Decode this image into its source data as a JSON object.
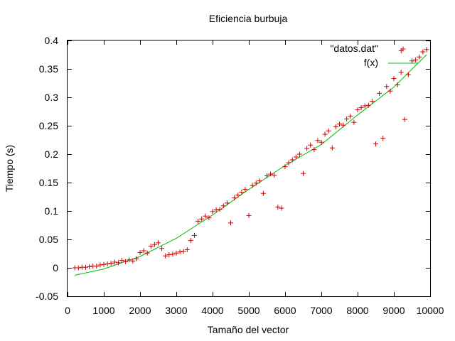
{
  "chart_data": {
    "type": "scatter",
    "title": "Eficiencia burbuja",
    "xlabel": "Tamaño del vector",
    "ylabel": "Tiempo (s)",
    "xlim": [
      0,
      10000
    ],
    "ylim": [
      -0.05,
      0.4
    ],
    "x_ticks": [
      "0",
      "1000",
      "2000",
      "3000",
      "4000",
      "5000",
      "6000",
      "7000",
      "8000",
      "9000",
      "10000"
    ],
    "y_ticks": [
      "-0.05",
      "0",
      "0.05",
      "0.1",
      "0.15",
      "0.2",
      "0.25",
      "0.3",
      "0.35",
      "0.4"
    ],
    "x_tick_values": [
      0,
      1000,
      2000,
      3000,
      4000,
      5000,
      6000,
      7000,
      8000,
      9000,
      10000
    ],
    "y_tick_values": [
      -0.05,
      0,
      0.05,
      0.1,
      0.15,
      0.2,
      0.25,
      0.3,
      0.35,
      0.4
    ],
    "grid": false,
    "legend_position": "top-right",
    "series": [
      {
        "name": "\"datos.dat\"",
        "marker": "+",
        "color": "#cc0000",
        "points": [
          [
            200,
            0.0
          ],
          [
            300,
            0.0
          ],
          [
            400,
            0.001
          ],
          [
            500,
            0.001
          ],
          [
            600,
            0.002
          ],
          [
            700,
            0.003
          ],
          [
            800,
            0.003
          ],
          [
            900,
            0.005
          ],
          [
            1000,
            0.006
          ],
          [
            1100,
            0.007
          ],
          [
            1200,
            0.008
          ],
          [
            1300,
            0.01
          ],
          [
            1400,
            0.009
          ],
          [
            1500,
            0.013
          ],
          [
            1600,
            0.011
          ],
          [
            1700,
            0.014
          ],
          [
            1800,
            0.012
          ],
          [
            1900,
            0.016
          ],
          [
            2000,
            0.027
          ],
          [
            2100,
            0.03
          ],
          [
            2200,
            0.026
          ],
          [
            2300,
            0.038
          ],
          [
            2400,
            0.041
          ],
          [
            2500,
            0.044
          ],
          [
            2600,
            0.034
          ],
          [
            2700,
            0.021
          ],
          [
            2800,
            0.023
          ],
          [
            2900,
            0.024
          ],
          [
            3000,
            0.026
          ],
          [
            3100,
            0.028
          ],
          [
            3200,
            0.029
          ],
          [
            3300,
            0.032
          ],
          [
            3400,
            0.048
          ],
          [
            3500,
            0.057
          ],
          [
            3600,
            0.082
          ],
          [
            3700,
            0.086
          ],
          [
            3800,
            0.091
          ],
          [
            3900,
            0.088
          ],
          [
            4000,
            0.099
          ],
          [
            4100,
            0.102
          ],
          [
            4200,
            0.103
          ],
          [
            4300,
            0.109
          ],
          [
            4400,
            0.114
          ],
          [
            4500,
            0.079
          ],
          [
            4600,
            0.123
          ],
          [
            4700,
            0.128
          ],
          [
            4800,
            0.133
          ],
          [
            4900,
            0.138
          ],
          [
            5000,
            0.092
          ],
          [
            5100,
            0.145
          ],
          [
            5200,
            0.149
          ],
          [
            5300,
            0.153
          ],
          [
            5400,
            0.131
          ],
          [
            5500,
            0.162
          ],
          [
            5600,
            0.165
          ],
          [
            5700,
            0.163
          ],
          [
            5800,
            0.107
          ],
          [
            5900,
            0.105
          ],
          [
            6000,
            0.178
          ],
          [
            6100,
            0.185
          ],
          [
            6200,
            0.19
          ],
          [
            6300,
            0.195
          ],
          [
            6400,
            0.2
          ],
          [
            6500,
            0.166
          ],
          [
            6600,
            0.21
          ],
          [
            6700,
            0.216
          ],
          [
            6800,
            0.208
          ],
          [
            6900,
            0.224
          ],
          [
            7000,
            0.221
          ],
          [
            7100,
            0.235
          ],
          [
            7200,
            0.241
          ],
          [
            7300,
            0.211
          ],
          [
            7400,
            0.248
          ],
          [
            7500,
            0.253
          ],
          [
            7600,
            0.251
          ],
          [
            7700,
            0.262
          ],
          [
            7800,
            0.267
          ],
          [
            7900,
            0.256
          ],
          [
            8000,
            0.278
          ],
          [
            8100,
            0.282
          ],
          [
            8200,
            0.285
          ],
          [
            8300,
            0.286
          ],
          [
            8400,
            0.293
          ],
          [
            8500,
            0.218
          ],
          [
            8600,
            0.307
          ],
          [
            8700,
            0.228
          ],
          [
            8800,
            0.319
          ],
          [
            8900,
            0.311
          ],
          [
            9000,
            0.333
          ],
          [
            9100,
            0.322
          ],
          [
            9200,
            0.382
          ],
          [
            9200,
            0.344
          ],
          [
            9300,
            0.261
          ],
          [
            9400,
            0.34
          ],
          [
            9500,
            0.364
          ],
          [
            9600,
            0.366
          ],
          [
            9700,
            0.371
          ],
          [
            9800,
            0.38
          ],
          [
            9900,
            0.384
          ]
        ]
      },
      {
        "name": "f(x)",
        "marker": "line",
        "color": "#00bb00",
        "points": [
          [
            200,
            -0.013
          ],
          [
            1000,
            -0.002
          ],
          [
            2000,
            0.02
          ],
          [
            3000,
            0.052
          ],
          [
            4000,
            0.093
          ],
          [
            5000,
            0.138
          ],
          [
            6000,
            0.18
          ],
          [
            7000,
            0.217
          ],
          [
            8000,
            0.269
          ],
          [
            9000,
            0.318
          ],
          [
            9900,
            0.375
          ]
        ]
      }
    ]
  }
}
